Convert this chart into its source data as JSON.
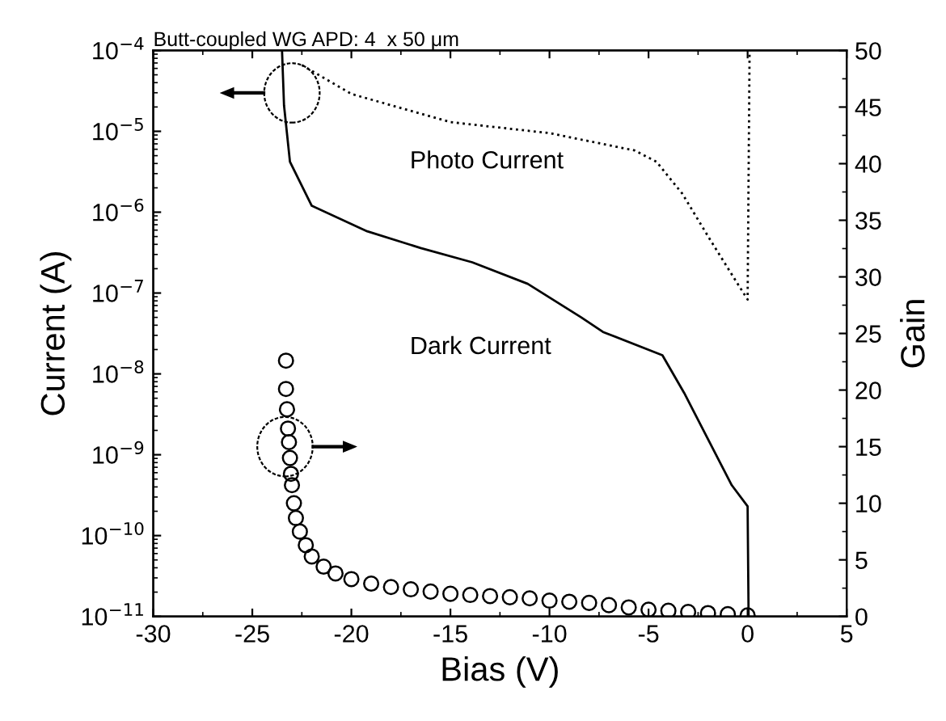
{
  "chart_data": {
    "type": "line",
    "title": "Butt-coupled WG APD: 4  x 50 μm",
    "xlabel": "Bias (V)",
    "ylabel": "Current (A)",
    "y2label": "Gain",
    "log": "y",
    "xlim": [
      -30,
      5
    ],
    "xticks": [
      -30,
      -25,
      -20,
      -15,
      -10,
      -5,
      0,
      5
    ],
    "ylim": [
      1e-11,
      0.0001
    ],
    "yticks": [
      {
        "value": 1e-11,
        "label": "10$^{−11}$"
      },
      {
        "value": 1e-10,
        "label": "10$^{−10}$"
      },
      {
        "value": 1e-09,
        "label": "10$^{−9}$"
      },
      {
        "value": 1e-08,
        "label": "10$^{−8}$"
      },
      {
        "value": 1e-07,
        "label": "10$^{−7}$"
      },
      {
        "value": 1e-06,
        "label": "10$^{−6}$"
      },
      {
        "value": 1e-05,
        "label": "10$^{−5}$"
      },
      {
        "value": 0.0001,
        "label": "10$^{−4}$"
      }
    ],
    "y2lim": [
      0,
      50
    ],
    "y2ticks": [
      0,
      5,
      10,
      15,
      20,
      25,
      30,
      35,
      40,
      45,
      50
    ],
    "grid": false,
    "legend": false,
    "series": [
      {
        "line_style": "dotted",
        "color": "#000000",
        "x": [
          -22.5,
          -20,
          -15,
          -10,
          -5.7,
          -4.6,
          -3.3,
          -1.9,
          -0.8,
          0,
          0.1
        ],
        "values": [
          6.6e-05,
          2.9e-05,
          1.3e-05,
          9.5e-06,
          5.8e-06,
          4.2e-06,
          1.7e-06,
          4.6e-07,
          1.7e-07,
          8.3e-08,
          0.0001
        ]
      },
      {
        "line_style": "solid",
        "color": "#000000",
        "x": [
          -23.5,
          -23.4,
          -23.1,
          -22.0,
          -19.2,
          -16.5,
          -13.9,
          -11.1,
          -8.4,
          -7.3,
          -4.3,
          -3.2,
          -0.8,
          0,
          0.05
        ],
        "values": [
          0.0001,
          2.1e-05,
          4.2e-06,
          1.2e-06,
          5.8e-07,
          3.6e-07,
          2.4e-07,
          1.3e-07,
          5e-08,
          3.3e-08,
          1.7e-08,
          5.8e-09,
          4.2e-10,
          2.3e-10,
          1e-11
        ]
      },
      {
        "type": "scatter",
        "axis": "y2",
        "marker": "circle",
        "color": "#000000",
        "x": [
          -23.3,
          -23.3,
          -23.25,
          -23.2,
          -23.15,
          -23.1,
          -23.05,
          -23.0,
          -22.9,
          -22.8,
          -22.6,
          -22.3,
          -22,
          -21.4,
          -20.8,
          -20,
          -19,
          -18,
          -17,
          -16,
          -15,
          -14,
          -13,
          -12,
          -11,
          -10,
          -9,
          -8,
          -7,
          -6,
          -5,
          -4,
          -3,
          -2,
          -1,
          0
        ],
        "values": [
          22.6,
          20.1,
          18.3,
          16.6,
          15.4,
          14,
          12.6,
          11.6,
          10,
          8.7,
          7.5,
          6.3,
          5.3,
          4.4,
          3.8,
          3.3,
          2.9,
          2.6,
          2.4,
          2.2,
          2.0,
          1.9,
          1.8,
          1.7,
          1.6,
          1.4,
          1.3,
          1.2,
          1.0,
          0.8,
          0.6,
          0.5,
          0.4,
          0.3,
          0.2,
          0.1
        ]
      }
    ],
    "annotations": [
      "Photo Current",
      "Dark Current"
    ]
  }
}
